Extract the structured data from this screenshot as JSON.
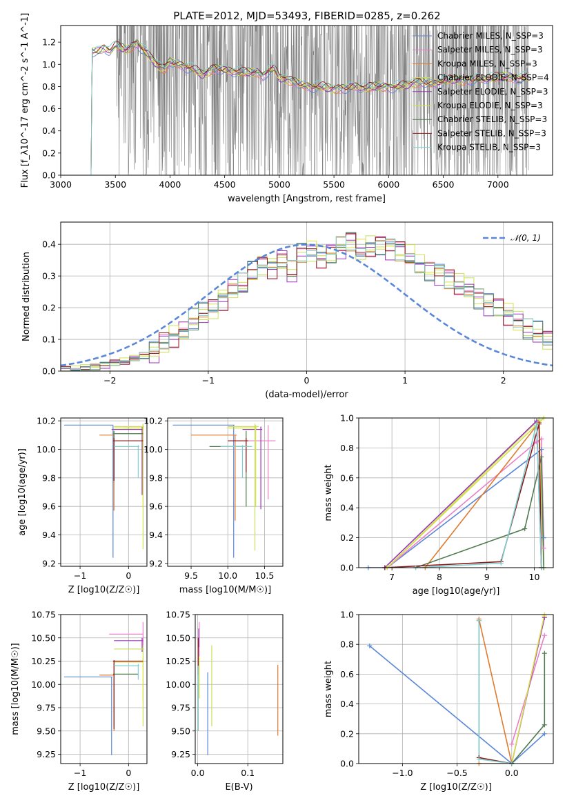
{
  "chart_data": [
    {
      "id": "spectrum",
      "type": "line",
      "title": "PLATE=2012, MJD=53493, FIBERID=0285, z=0.262",
      "xlabel": "wavelength [Angstrom, rest frame]",
      "ylabel": "Flux [f_λ10^-17 erg cm^-2 s^-1 A^-1]",
      "xlim": [
        3000,
        7500
      ],
      "ylim": [
        0,
        1.35
      ],
      "xticks": [
        3000,
        3500,
        4000,
        4500,
        5000,
        5500,
        6000,
        6500,
        7000
      ],
      "yticks": [
        0.0,
        0.2,
        0.4,
        0.6,
        0.8,
        1.0,
        1.2
      ],
      "grid": false,
      "legend_position": "right",
      "data_x_range": [
        3200,
        7280
      ],
      "series": [
        {
          "name": "Chabrier MILES, N_SSP=3",
          "color": "#5b87d9"
        },
        {
          "name": "Salpeter MILES, N_SSP=3",
          "color": "#e87fc8"
        },
        {
          "name": "Kroupa MILES, N_SSP=3",
          "color": "#e07a2c"
        },
        {
          "name": "Chabrier ELODIE, N_SSP=4",
          "color": "#c8e05a"
        },
        {
          "name": "Salpeter ELODIE, N_SSP=3",
          "color": "#9932b8"
        },
        {
          "name": "Kroupa ELODIE, N_SSP=3",
          "color": "#d4e04a"
        },
        {
          "name": "Chabrier STELIB, N_SSP=3",
          "color": "#4f7a4f"
        },
        {
          "name": "Salpeter STELIB, N_SSP=3",
          "color": "#8b1a1a"
        },
        {
          "name": "Kroupa STELIB, N_SSP=3",
          "color": "#7ecfcf"
        }
      ],
      "model_continuum": {
        "x": [
          3200,
          3270,
          3290,
          3350,
          3400,
          3450,
          3500,
          3600,
          3700,
          3800,
          3900,
          3950,
          4000,
          4100,
          4200,
          4300,
          4400,
          4500,
          4600,
          4700,
          4800,
          4850,
          4900,
          4950,
          5000,
          5100,
          5200,
          5300,
          5400,
          5500,
          5600,
          5700,
          5800,
          5900,
          6000,
          6100,
          6200,
          6300,
          6400,
          6500,
          6600,
          6700,
          6800,
          6900,
          7000,
          7100,
          7200,
          7280
        ],
        "y": [
          0.0,
          0.0,
          1.12,
          1.12,
          1.15,
          1.12,
          1.16,
          1.13,
          1.2,
          1.08,
          0.98,
          0.95,
          1.02,
          1.0,
          0.96,
          0.9,
          0.97,
          0.95,
          0.93,
          0.92,
          0.93,
          0.9,
          0.95,
          0.96,
          0.88,
          0.85,
          0.82,
          0.8,
          0.79,
          0.78,
          0.79,
          0.8,
          0.78,
          0.8,
          0.8,
          0.8,
          0.82,
          0.84,
          0.83,
          0.84,
          0.86,
          0.86,
          0.87,
          0.87,
          0.88,
          0.89,
          0.88,
          0.88
        ]
      },
      "observed_noise_range": [
        3500,
        7280
      ]
    },
    {
      "id": "residuals",
      "type": "line",
      "xlabel": "(data-model)/error",
      "ylabel": "Normed distribution",
      "xlim": [
        -2.5,
        2.5
      ],
      "ylim": [
        0,
        0.47
      ],
      "xticks": [
        -2,
        -1,
        0,
        1,
        2
      ],
      "yticks": [
        0.0,
        0.1,
        0.2,
        0.3,
        0.4
      ],
      "grid": true,
      "legend_position": "top-right",
      "reference": {
        "name": "𝒩(0, 1)",
        "mean": 0,
        "sigma": 1,
        "color": "#5b87d9"
      },
      "bin_width": 0.1,
      "bin_start": -2.5,
      "histogram_values": [
        0.005,
        0.005,
        0.01,
        0.015,
        0.02,
        0.025,
        0.03,
        0.04,
        0.05,
        0.06,
        0.09,
        0.11,
        0.13,
        0.16,
        0.18,
        0.2,
        0.23,
        0.26,
        0.27,
        0.31,
        0.34,
        0.33,
        0.35,
        0.31,
        0.37,
        0.38,
        0.36,
        0.37,
        0.39,
        0.41,
        0.38,
        0.39,
        0.4,
        0.39,
        0.38,
        0.36,
        0.33,
        0.32,
        0.31,
        0.29,
        0.27,
        0.26,
        0.23,
        0.21,
        0.2,
        0.18,
        0.16,
        0.13,
        0.12,
        0.1,
        0.08,
        0.07,
        0.06,
        0.05,
        0.04,
        0.035,
        0.03,
        0.025,
        0.02,
        0.02,
        0.015,
        0.01,
        0.01,
        0.02
      ]
    },
    {
      "id": "age-vs-Z",
      "type": "scatter",
      "xlabel": "Z [log10(Z/Z☉)]",
      "ylabel": "age [log10(age/yr)]",
      "xlim": [
        -1.4,
        0.38
      ],
      "ylim": [
        9.18,
        10.22
      ],
      "xticks": [
        -1,
        0
      ],
      "yticks": [
        9.2,
        9.4,
        9.6,
        9.8,
        10.0,
        10.2
      ],
      "grid": true,
      "errorbars": [
        {
          "color": "#5b87d9",
          "x": -0.32,
          "y": 10.17,
          "xl": -1.33,
          "xh": -0.32,
          "yl": 9.24,
          "yh": 10.17
        },
        {
          "color": "#e07a2c",
          "x": -0.3,
          "y": 10.1,
          "xl": -0.6,
          "xh": -0.3,
          "yl": 9.57,
          "yh": 10.1
        },
        {
          "color": "#e87fc8",
          "x": 0.3,
          "y": 10.15,
          "xl": -0.1,
          "xh": 0.3,
          "yl": 9.7,
          "yh": 10.17
        },
        {
          "color": "#9932b8",
          "x": 0.28,
          "y": 10.14,
          "xl": -0.35,
          "xh": 0.3,
          "yl": 9.68,
          "yh": 10.16
        },
        {
          "color": "#c8e05a",
          "x": 0.3,
          "y": 10.15,
          "xl": -0.3,
          "xh": 0.32,
          "yl": 9.3,
          "yh": 10.18
        },
        {
          "color": "#d4e04a",
          "x": 0.3,
          "y": 10.16,
          "xl": -0.3,
          "xh": 0.32,
          "yl": 9.6,
          "yh": 10.17
        },
        {
          "color": "#4f7a4f",
          "x": -0.3,
          "y": 10.11,
          "xl": -0.32,
          "xh": 0.3,
          "yl": 9.78,
          "yh": 10.13
        },
        {
          "color": "#8b1a1a",
          "x": -0.3,
          "y": 10.06,
          "xl": -0.32,
          "xh": 0.3,
          "yl": 9.78,
          "yh": 10.08
        },
        {
          "color": "#7ecfcf",
          "x": 0.2,
          "y": 10.02,
          "xl": -0.3,
          "xh": 0.22,
          "yl": 9.8,
          "yh": 10.03
        }
      ]
    },
    {
      "id": "age-vs-mass",
      "type": "scatter",
      "xlabel": "mass [log10(M/M☉)]",
      "ylabel": "",
      "xlim": [
        9.18,
        10.75
      ],
      "ylim": [
        9.18,
        10.22
      ],
      "xticks": [
        9.5,
        10.0,
        10.5
      ],
      "yticks": [
        9.2,
        9.4,
        9.6,
        9.8,
        10.0,
        10.2
      ],
      "grid": true,
      "errorbars": [
        {
          "color": "#5b87d9",
          "x": 10.08,
          "y": 10.17,
          "xl": 9.25,
          "xh": 10.09,
          "yl": 9.24,
          "yh": 10.17
        },
        {
          "color": "#e07a2c",
          "x": 10.1,
          "y": 10.1,
          "xl": 9.5,
          "xh": 10.12,
          "yl": 9.5,
          "yh": 10.1
        },
        {
          "color": "#e87fc8",
          "x": 10.55,
          "y": 10.06,
          "xl": 10.0,
          "xh": 10.65,
          "yl": 9.65,
          "yh": 10.17
        },
        {
          "color": "#9932b8",
          "x": 10.45,
          "y": 10.14,
          "xl": 10.2,
          "xh": 10.47,
          "yl": 9.58,
          "yh": 10.16
        },
        {
          "color": "#c8e05a",
          "x": 10.37,
          "y": 10.15,
          "xl": 10.0,
          "xh": 10.4,
          "yl": 9.29,
          "yh": 10.18
        },
        {
          "color": "#d4e04a",
          "x": 10.38,
          "y": 10.16,
          "xl": 10.0,
          "xh": 10.42,
          "yl": 9.6,
          "yh": 10.17
        },
        {
          "color": "#4f7a4f",
          "x": 10.25,
          "y": 10.02,
          "xl": 9.75,
          "xh": 10.28,
          "yl": 9.6,
          "yh": 10.13
        },
        {
          "color": "#8b1a1a",
          "x": 10.25,
          "y": 10.06,
          "xl": 10.0,
          "xh": 10.28,
          "yl": 9.84,
          "yh": 10.08
        },
        {
          "color": "#7ecfcf",
          "x": 10.2,
          "y": 10.02,
          "xl": 9.9,
          "xh": 10.33,
          "yl": 9.8,
          "yh": 10.03
        }
      ]
    },
    {
      "id": "weight-vs-age",
      "type": "line",
      "xlabel": "age [log10(age/yr)]",
      "ylabel": "mass weight",
      "xlim": [
        6.3,
        10.4
      ],
      "ylim": [
        0,
        1.0
      ],
      "xticks": [
        7,
        8,
        9,
        10
      ],
      "yticks": [
        0.0,
        0.2,
        0.4,
        0.6,
        0.8,
        1.0
      ],
      "grid": true,
      "series": [
        {
          "color": "#5b87d9",
          "x": [
            6.5,
            6.9,
            10.15,
            10.2
          ],
          "y": [
            0.0,
            0.0,
            0.79,
            0.2
          ]
        },
        {
          "color": "#e87fc8",
          "x": [
            6.9,
            10.05,
            10.15,
            10.2
          ],
          "y": [
            0.0,
            0.84,
            0.86,
            0.13
          ]
        },
        {
          "color": "#e07a2c",
          "x": [
            7.7,
            10.1,
            10.15
          ],
          "y": [
            0.0,
            0.97,
            0.0
          ]
        },
        {
          "color": "#c8e05a",
          "x": [
            6.9,
            10.1,
            10.2
          ],
          "y": [
            0.0,
            0.99,
            0.0
          ]
        },
        {
          "color": "#9932b8",
          "x": [
            6.85,
            10.05,
            10.15
          ],
          "y": [
            0.0,
            0.98,
            0.0
          ]
        },
        {
          "color": "#d4e04a",
          "x": [
            6.9,
            10.2
          ],
          "y": [
            0.0,
            1.0
          ]
        },
        {
          "color": "#4f7a4f",
          "x": [
            7.5,
            9.8,
            10.15,
            10.2
          ],
          "y": [
            0.0,
            0.26,
            0.74,
            0.0
          ]
        },
        {
          "color": "#8b1a1a",
          "x": [
            6.85,
            9.3,
            10.1,
            10.15
          ],
          "y": [
            0.0,
            0.04,
            0.96,
            0.0
          ]
        },
        {
          "color": "#7ecfcf",
          "x": [
            7.5,
            9.3,
            10.05,
            10.15
          ],
          "y": [
            0.0,
            0.03,
            0.96,
            0.0
          ]
        }
      ]
    },
    {
      "id": "mass-vs-Z",
      "type": "scatter",
      "xlabel": "Z [log10(Z/Z☉)]",
      "ylabel": "mass [log10(M/M☉)]",
      "xlim": [
        -1.4,
        0.38
      ],
      "ylim": [
        9.15,
        10.75
      ],
      "xticks": [
        -1,
        0
      ],
      "yticks": [
        9.25,
        9.5,
        9.75,
        10.0,
        10.25,
        10.5,
        10.75
      ],
      "grid": true,
      "errorbars": [
        {
          "color": "#5b87d9",
          "x": -0.35,
          "y": 10.08,
          "xl": -1.33,
          "xh": -0.33,
          "yl": 9.24,
          "yh": 10.08
        },
        {
          "color": "#e07a2c",
          "x": -0.3,
          "y": 10.1,
          "xl": -0.6,
          "xh": -0.3,
          "yl": 9.5,
          "yh": 10.1
        },
        {
          "color": "#e87fc8",
          "x": 0.3,
          "y": 10.54,
          "xl": -0.4,
          "xh": 0.3,
          "yl": 10.4,
          "yh": 10.67
        },
        {
          "color": "#9932b8",
          "x": 0.28,
          "y": 10.47,
          "xl": -0.3,
          "xh": 0.3,
          "yl": 10.35,
          "yh": 10.5
        },
        {
          "color": "#c8e05a",
          "x": 0.3,
          "y": 10.38,
          "xl": -0.3,
          "xh": 0.32,
          "yl": 9.55,
          "yh": 10.42
        },
        {
          "color": "#d4e04a",
          "x": 0.3,
          "y": 10.24,
          "xl": -0.3,
          "xh": 0.3,
          "yl": 9.8,
          "yh": 10.3
        },
        {
          "color": "#4f7a4f",
          "x": -0.3,
          "y": 10.11,
          "xl": -0.32,
          "xh": 0.2,
          "yl": 9.55,
          "yh": 10.25
        },
        {
          "color": "#8b1a1a",
          "x": -0.3,
          "y": 10.25,
          "xl": -0.32,
          "xh": 0.3,
          "yl": 9.52,
          "yh": 10.26
        },
        {
          "color": "#7ecfcf",
          "x": 0.2,
          "y": 10.2,
          "xl": -0.3,
          "xh": 0.22,
          "yl": 10.05,
          "yh": 10.22
        }
      ]
    },
    {
      "id": "mass-vs-EBV",
      "type": "scatter",
      "xlabel": "E(B-V)",
      "ylabel": "",
      "xlim": [
        -0.005,
        0.17
      ],
      "ylim": [
        9.15,
        10.75
      ],
      "xticks": [
        0.0,
        0.1
      ],
      "yticks": [
        9.25,
        9.5,
        9.75,
        10.0,
        10.25,
        10.5,
        10.75
      ],
      "grid": true,
      "errorbars": [
        {
          "color": "#5b87d9",
          "x": 0.02,
          "y": 9.7,
          "yl": 9.24,
          "yh": 10.13
        },
        {
          "color": "#e07a2c",
          "x": 0.16,
          "y": 9.8,
          "yl": 9.45,
          "yh": 10.21
        },
        {
          "color": "#e87fc8",
          "x": 0.003,
          "y": 10.45,
          "yl": 10.3,
          "yh": 10.67
        },
        {
          "color": "#9932b8",
          "x": 0.002,
          "y": 10.5,
          "yl": 10.4,
          "yh": 10.6
        },
        {
          "color": "#c8e05a",
          "x": 0.028,
          "y": 10.0,
          "yl": 9.55,
          "yh": 10.42
        },
        {
          "color": "#d4e04a",
          "x": 0.003,
          "y": 10.2,
          "yl": 9.85,
          "yh": 10.3
        },
        {
          "color": "#4f7a4f",
          "x": 0.001,
          "y": 9.8,
          "yl": 9.5,
          "yh": 10.0
        },
        {
          "color": "#8b1a1a",
          "x": 0.001,
          "y": 10.3,
          "yl": 10.1,
          "yh": 10.5
        },
        {
          "color": "#7ecfcf",
          "x": 0.001,
          "y": 10.0,
          "yl": 9.5,
          "yh": 10.2
        }
      ]
    },
    {
      "id": "weight-vs-Z",
      "type": "line",
      "xlabel": "Z [log10(Z/Z☉)]",
      "ylabel": "mass weight",
      "xlim": [
        -1.4,
        0.38
      ],
      "ylim": [
        0,
        1.0
      ],
      "xticks": [
        -1.0,
        -0.5,
        0.0
      ],
      "yticks": [
        0.0,
        0.2,
        0.4,
        0.6,
        0.8,
        1.0
      ],
      "grid": true,
      "series": [
        {
          "color": "#5b87d9",
          "x": [
            -1.3,
            0.0,
            0.3
          ],
          "y": [
            0.79,
            0.0,
            0.2
          ]
        },
        {
          "color": "#e87fc8",
          "x": [
            0.0,
            0.3
          ],
          "y": [
            0.13,
            0.86
          ]
        },
        {
          "color": "#e07a2c",
          "x": [
            -0.3,
            0.0,
            -0.3
          ],
          "y": [
            0.97,
            0.0,
            0.0
          ]
        },
        {
          "color": "#c8e05a",
          "x": [
            0.0,
            0.3
          ],
          "y": [
            0.0,
            0.99
          ]
        },
        {
          "color": "#9932b8",
          "x": [
            0.0,
            0.3
          ],
          "y": [
            0.0,
            0.98
          ]
        },
        {
          "color": "#d4e04a",
          "x": [
            0.0,
            0.3
          ],
          "y": [
            0.0,
            1.0
          ]
        },
        {
          "color": "#4f7a4f",
          "x": [
            0.0,
            0.3,
            0.3
          ],
          "y": [
            0.0,
            0.26,
            0.74
          ]
        },
        {
          "color": "#8b1a1a",
          "x": [
            -0.3,
            -0.3,
            0.0
          ],
          "y": [
            0.96,
            0.04,
            0.0
          ]
        },
        {
          "color": "#7ecfcf",
          "x": [
            -0.3,
            -0.3,
            0.0
          ],
          "y": [
            0.96,
            0.03,
            0.0
          ]
        }
      ]
    }
  ]
}
